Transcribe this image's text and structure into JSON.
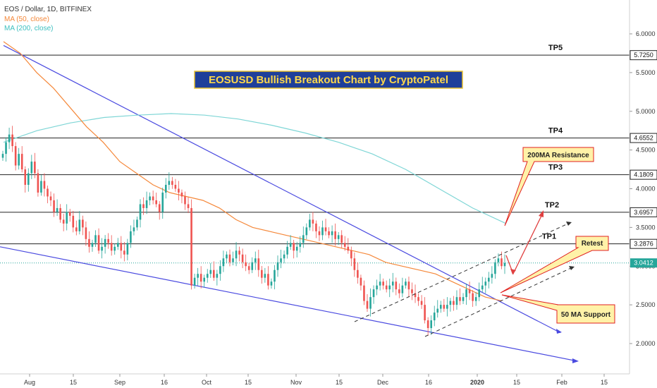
{
  "header": {
    "symbol_line": "EOS / Dollar, 1D, BITFINEX",
    "ma50_label": "MA (50, close)",
    "ma200_label": "MA (200, close)"
  },
  "chart_title": "EOSUSD Bullish Breakout Chart by CryptoPatel",
  "colors": {
    "up": "#26a69a",
    "down": "#ef5350",
    "ma50": "#f5883a",
    "ma200": "#7fd6d6",
    "trendline": "#4a4ae0",
    "title_bg": "#1f3f9a",
    "title_fg": "#ffd84a",
    "callout_bg": "#fff2a8",
    "callout_border": "#e02020",
    "arrow": "#e04040",
    "price_now": "#26a69a"
  },
  "chart_data": {
    "type": "candlestick",
    "x_ticks": [
      "Aug",
      "15",
      "Sep",
      "16",
      "Oct",
      "15",
      "Nov",
      "15",
      "Dec",
      "16",
      "2020",
      "15",
      "Feb",
      "15"
    ],
    "y_ticks": [
      "6.0000",
      "5.5000",
      "5.0000",
      "4.5000",
      "4.0000",
      "3.5000",
      "3.0000",
      "2.5000",
      "2.0000"
    ],
    "y_range": [
      1.5,
      6.5
    ],
    "targets": [
      {
        "name": "TP5",
        "value": "5.7250"
      },
      {
        "name": "TP4",
        "value": "4.6552"
      },
      {
        "name": "TP3",
        "value": "4.1809"
      },
      {
        "name": "TP2",
        "value": "3.6957"
      },
      {
        "name": "TP1",
        "value": "3.2876"
      }
    ],
    "last_price": "3.0412",
    "annotations": {
      "ma200_resistance": "200MA Resistance",
      "retest": "Retest",
      "ma50_support": "50 MA Support"
    },
    "candles_close": [
      4.45,
      4.6,
      4.7,
      4.55,
      4.3,
      4.45,
      4.25,
      4.05,
      4.2,
      4.35,
      4.2,
      3.95,
      4.1,
      4.0,
      3.9,
      3.85,
      3.7,
      3.75,
      3.6,
      3.55,
      3.7,
      3.65,
      3.5,
      3.45,
      3.6,
      3.5,
      3.35,
      3.25,
      3.3,
      3.4,
      3.2,
      3.25,
      3.35,
      3.3,
      3.2,
      3.25,
      3.3,
      3.2,
      3.15,
      3.3,
      3.45,
      3.5,
      3.6,
      3.8,
      3.75,
      3.85,
      3.9,
      3.85,
      3.8,
      3.7,
      3.95,
      4.05,
      4.1,
      4.05,
      4.0,
      3.95,
      3.9,
      3.8,
      3.75,
      2.75,
      2.85,
      2.9,
      2.8,
      2.85,
      2.9,
      2.95,
      2.85,
      2.9,
      3.0,
      3.1,
      3.15,
      3.05,
      3.1,
      3.2,
      3.15,
      3.05,
      3.0,
      2.95,
      3.05,
      3.1,
      2.95,
      2.85,
      2.9,
      2.75,
      2.8,
      2.95,
      3.05,
      3.1,
      3.15,
      3.25,
      3.3,
      3.2,
      3.25,
      3.3,
      3.4,
      3.5,
      3.6,
      3.55,
      3.45,
      3.4,
      3.5,
      3.45,
      3.4,
      3.45,
      3.35,
      3.4,
      3.3,
      3.25,
      3.2,
      3.1,
      2.95,
      2.85,
      2.75,
      2.55,
      2.45,
      2.6,
      2.7,
      2.75,
      2.8,
      2.75,
      2.7,
      2.75,
      2.8,
      2.7,
      2.65,
      2.75,
      2.8,
      2.7,
      2.65,
      2.6,
      2.55,
      2.5,
      2.3,
      2.2,
      2.3,
      2.4,
      2.45,
      2.5,
      2.45,
      2.5,
      2.55,
      2.5,
      2.6,
      2.55,
      2.6,
      2.7,
      2.65,
      2.55,
      2.6,
      2.7,
      2.75,
      2.8,
      2.85,
      2.9,
      3.05,
      3.1,
      3.0,
      3.04
    ],
    "ma50": [
      5.9,
      5.75,
      5.5,
      5.3,
      5.05,
      4.8,
      4.6,
      4.35,
      4.2,
      4.05,
      3.95,
      3.9,
      3.85,
      3.75,
      3.6,
      3.5,
      3.45,
      3.4,
      3.35,
      3.3,
      3.25,
      3.2,
      3.15,
      3.05,
      3.0,
      2.95,
      2.9,
      2.8,
      2.7,
      2.6,
      2.55
    ],
    "ma200": [
      4.6,
      4.75,
      4.85,
      4.92,
      4.95,
      4.97,
      4.95,
      4.9,
      4.82,
      4.72,
      4.6,
      4.45,
      4.25,
      4.0,
      3.75,
      3.55
    ],
    "trendlines": {
      "upper_from": [
        0,
        5.85
      ],
      "upper_to": [
        155,
        2.15
      ],
      "lower_from": [
        0,
        3.25
      ],
      "lower_to": [
        160,
        1.75
      ]
    }
  }
}
